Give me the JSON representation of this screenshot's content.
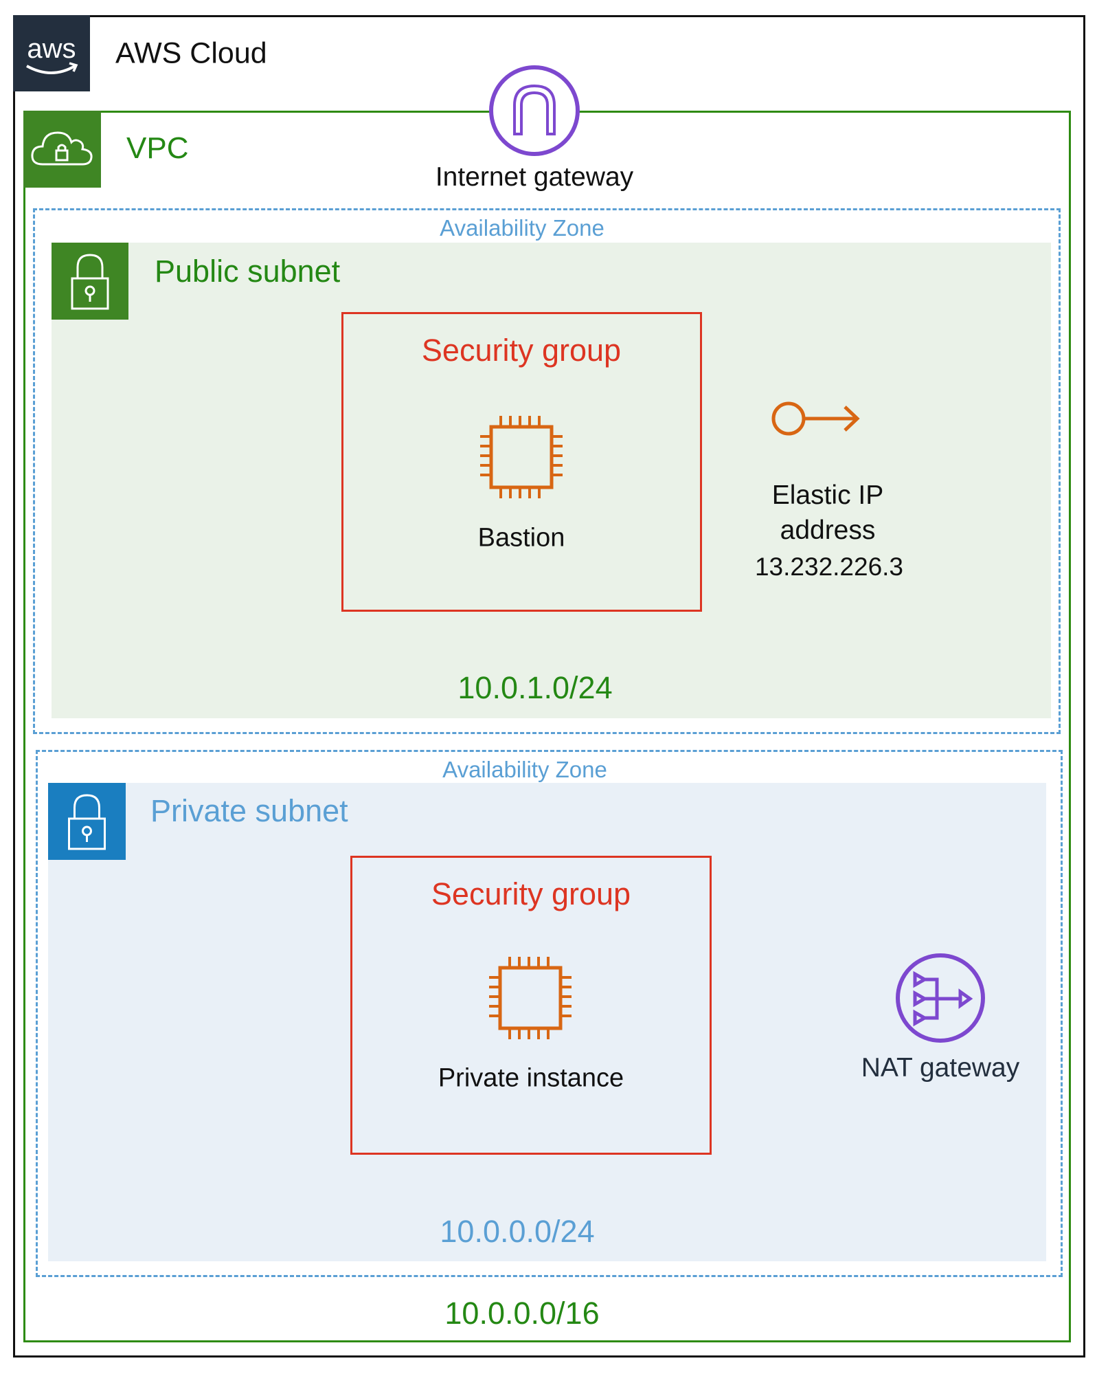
{
  "cloud": {
    "label": "AWS Cloud",
    "logo_text": "aws",
    "icon": "aws-logo"
  },
  "vpc": {
    "label": "VPC",
    "cidr": "10.0.0.0/16",
    "icon": "vpc-cloud-lock-icon"
  },
  "internet_gateway": {
    "label": "Internet gateway",
    "icon": "internet-gateway-icon"
  },
  "availability_zones": [
    {
      "label": "Availability Zone",
      "subnet": {
        "label": "Public subnet",
        "cidr": "10.0.1.0/24",
        "icon": "lock-icon",
        "security_group": {
          "label": "Security group",
          "instance": {
            "label": "Bastion",
            "icon": "ec2-chip-icon"
          }
        },
        "elastic_ip": {
          "label_line1": "Elastic IP",
          "label_line2": "address",
          "ip": "13.232.226.3",
          "icon": "elastic-ip-icon"
        }
      }
    },
    {
      "label": "Availability Zone",
      "subnet": {
        "label": "Private subnet",
        "cidr": "10.0.0.0/24",
        "icon": "lock-icon",
        "security_group": {
          "label": "Security group",
          "instance": {
            "label": "Private instance",
            "icon": "ec2-chip-icon"
          }
        },
        "nat_gateway": {
          "label": "NAT gateway",
          "icon": "nat-gateway-icon"
        }
      }
    }
  ],
  "colors": {
    "aws_navy": "#232f3e",
    "vpc_green": "#3f8624",
    "public_subnet_fill": "#eaf2e8",
    "private_subnet_fill": "#e9f0f7",
    "az_blue": "#5a9fd4",
    "private_icon_blue": "#1a7ec0",
    "security_group_red": "#dd3522",
    "ec2_orange": "#d86613",
    "gateway_purple": "#7d48cf"
  }
}
